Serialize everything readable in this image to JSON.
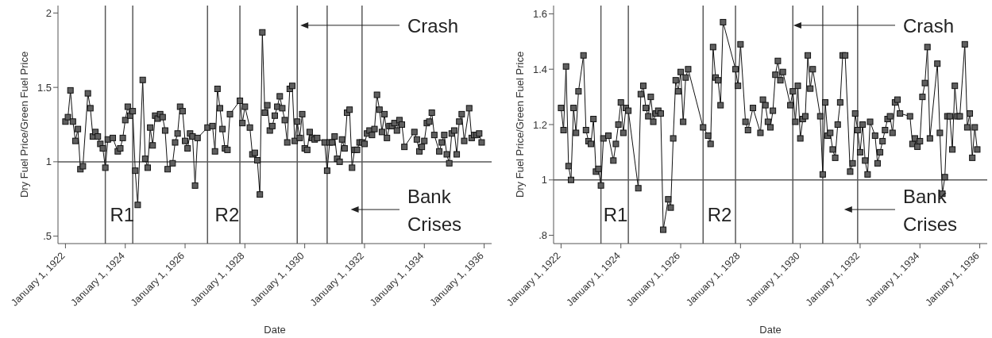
{
  "chart_data": [
    {
      "type": "line",
      "xlabel": "Date",
      "ylabel": "Dry Fuel Price/Green Fuel Price",
      "marker": "square",
      "xlim": [
        "1921-10",
        "1936-04"
      ],
      "ylim": [
        0.45,
        2.05
      ],
      "xticks": [
        {
          "value": "1922-01",
          "label": "January 1, 1922"
        },
        {
          "value": "1924-01",
          "label": "January 1, 1924"
        },
        {
          "value": "1926-01",
          "label": "January 1, 1926"
        },
        {
          "value": "1928-01",
          "label": "January 1, 1928"
        },
        {
          "value": "1930-01",
          "label": "January 1, 1930"
        },
        {
          "value": "1932-01",
          "label": "January 1, 1932"
        },
        {
          "value": "1934-01",
          "label": "January 1, 1934"
        },
        {
          "value": "1936-01",
          "label": "January 1, 1936"
        }
      ],
      "yticks": [
        {
          "value": 0.5,
          "label": ".5"
        },
        1,
        1.5,
        2
      ],
      "ref_lines": [
        {
          "axis": "y",
          "value": 1,
          "color": "#595959"
        },
        {
          "axis": "x",
          "value": "1923-05",
          "color": "#595959"
        },
        {
          "axis": "x",
          "value": "1924-04",
          "color": "#595959"
        },
        {
          "axis": "x",
          "value": "1926-10",
          "color": "#595959"
        },
        {
          "axis": "x",
          "value": "1927-11",
          "color": "#595959"
        },
        {
          "axis": "x",
          "value": "1929-10",
          "color": "#595959"
        },
        {
          "axis": "x",
          "value": "1930-10",
          "color": "#595959"
        },
        {
          "axis": "x",
          "value": "1931-12",
          "color": "#595959"
        }
      ],
      "annotations": [
        "R1",
        "R2",
        "Crash",
        "Bank Crises"
      ],
      "series": [
        {
          "color": "#5f5f5f",
          "x": [
            "1922-01",
            "1922-02",
            "1922-03",
            "1922-04",
            "1922-05",
            "1922-06",
            "1922-07",
            "1922-08",
            "1922-10",
            "1922-11",
            "1922-12",
            "1923-01",
            "1923-02",
            "1923-03",
            "1923-04",
            "1923-05",
            "1923-06",
            "1923-08",
            "1923-10",
            "1923-11",
            "1923-12",
            "1924-01",
            "1924-02",
            "1924-03",
            "1924-04",
            "1924-05",
            "1924-06",
            "1924-08",
            "1924-09",
            "1924-10",
            "1924-11",
            "1924-12",
            "1925-01",
            "1925-02",
            "1925-03",
            "1925-04",
            "1925-05",
            "1925-06",
            "1925-08",
            "1925-09",
            "1925-10",
            "1925-11",
            "1925-12",
            "1926-01",
            "1926-02",
            "1926-03",
            "1926-04",
            "1926-05",
            "1926-06",
            "1926-10",
            "1926-12",
            "1927-01",
            "1927-02",
            "1927-03",
            "1927-04",
            "1927-05",
            "1927-06",
            "1927-07",
            "1927-11",
            "1927-12",
            "1928-01",
            "1928-03",
            "1928-04",
            "1928-05",
            "1928-06",
            "1928-07",
            "1928-08",
            "1928-09",
            "1928-10",
            "1928-11",
            "1928-12",
            "1929-01",
            "1929-02",
            "1929-03",
            "1929-04",
            "1929-05",
            "1929-06",
            "1929-07",
            "1929-08",
            "1929-09",
            "1929-10",
            "1929-11",
            "1929-12",
            "1930-01",
            "1930-02",
            "1930-03",
            "1930-04",
            "1930-05",
            "1930-06",
            "1930-09",
            "1930-10",
            "1930-11",
            "1930-12",
            "1931-01",
            "1931-02",
            "1931-03",
            "1931-04",
            "1931-05",
            "1931-06",
            "1931-07",
            "1931-08",
            "1931-09",
            "1931-10",
            "1931-11",
            "1931-12",
            "1932-01",
            "1932-02",
            "1932-03",
            "1932-04",
            "1932-05",
            "1932-06",
            "1932-07",
            "1932-08",
            "1932-09",
            "1932-10",
            "1932-11",
            "1932-12",
            "1933-01",
            "1933-02",
            "1933-03",
            "1933-04",
            "1933-05",
            "1933-09",
            "1933-10",
            "1933-11",
            "1933-12",
            "1934-01",
            "1934-02",
            "1934-03",
            "1934-04",
            "1934-05",
            "1934-07",
            "1934-08",
            "1934-09",
            "1934-10",
            "1934-11",
            "1934-12",
            "1935-01",
            "1935-02",
            "1935-03",
            "1935-04",
            "1935-05",
            "1935-07",
            "1935-08",
            "1935-09",
            "1935-10",
            "1935-11",
            "1935-12"
          ],
          "values": [
            1.27,
            1.3,
            1.48,
            1.27,
            1.14,
            1.22,
            0.95,
            0.97,
            1.46,
            1.36,
            1.17,
            1.2,
            1.17,
            1.12,
            1.09,
            0.96,
            1.15,
            1.16,
            1.07,
            1.09,
            1.16,
            1.28,
            1.37,
            1.31,
            1.34,
            0.94,
            0.71,
            1.55,
            1.02,
            0.96,
            1.23,
            1.11,
            1.31,
            1.29,
            1.32,
            1.3,
            1.21,
            0.95,
            0.99,
            1.13,
            1.19,
            1.37,
            1.34,
            1.14,
            1.09,
            1.19,
            1.17,
            0.84,
            1.16,
            1.23,
            1.24,
            1.07,
            1.49,
            1.36,
            1.22,
            1.09,
            1.08,
            1.32,
            1.41,
            1.26,
            1.37,
            1.23,
            1.05,
            1.06,
            1.01,
            0.78,
            1.87,
            1.33,
            1.38,
            1.21,
            1.24,
            1.31,
            1.37,
            1.44,
            1.36,
            1.28,
            1.13,
            1.49,
            1.51,
            1.14,
            1.27,
            1.16,
            1.32,
            1.09,
            1.08,
            1.2,
            1.16,
            1.15,
            1.16,
            1.13,
            0.94,
            1.13,
            1.13,
            1.17,
            1.02,
            1.0,
            1.15,
            1.09,
            1.33,
            1.35,
            0.96,
            1.08,
            1.08,
            1.13,
            1.13,
            1.12,
            1.19,
            1.21,
            1.18,
            1.22,
            1.45,
            1.35,
            1.2,
            1.32,
            1.16,
            1.24,
            1.24,
            1.26,
            1.21,
            1.28,
            1.25,
            1.1,
            1.2,
            1.15,
            1.07,
            1.1,
            1.14,
            1.26,
            1.27,
            1.33,
            1.18,
            1.07,
            1.13,
            1.18,
            1.05,
            0.99,
            1.19,
            1.21,
            1.05,
            1.27,
            1.32,
            1.14,
            1.36,
            1.16,
            1.18,
            1.18,
            1.19,
            1.13
          ]
        }
      ]
    },
    {
      "type": "line",
      "xlabel": "Date",
      "ylabel": "Dry Fuel Price/Green Fuel Price",
      "marker": "square",
      "xlim": [
        "1921-10",
        "1936-04"
      ],
      "ylim": [
        0.77,
        1.63
      ],
      "xticks": [
        {
          "value": "1922-01",
          "label": "January 1, 1922"
        },
        {
          "value": "1924-01",
          "label": "January 1, 1924"
        },
        {
          "value": "1926-01",
          "label": "January 1, 1926"
        },
        {
          "value": "1928-01",
          "label": "January 1, 1928"
        },
        {
          "value": "1930-01",
          "label": "January 1, 1930"
        },
        {
          "value": "1932-01",
          "label": "January 1, 1932"
        },
        {
          "value": "1934-01",
          "label": "January 1, 1934"
        },
        {
          "value": "1936-01",
          "label": "January 1, 1936"
        }
      ],
      "yticks": [
        {
          "value": 0.8,
          "label": ".8"
        },
        1,
        1.2,
        1.4,
        1.6
      ],
      "ref_lines": [
        {
          "axis": "y",
          "value": 1,
          "color": "#595959"
        },
        {
          "axis": "x",
          "value": "1923-05",
          "color": "#595959"
        },
        {
          "axis": "x",
          "value": "1924-04",
          "color": "#595959"
        },
        {
          "axis": "x",
          "value": "1926-10",
          "color": "#595959"
        },
        {
          "axis": "x",
          "value": "1927-11",
          "color": "#595959"
        },
        {
          "axis": "x",
          "value": "1929-10",
          "color": "#595959"
        },
        {
          "axis": "x",
          "value": "1930-10",
          "color": "#595959"
        },
        {
          "axis": "x",
          "value": "1931-12",
          "color": "#595959"
        }
      ],
      "annotations": [
        "R1",
        "R2",
        "Crash",
        "Bank Crises"
      ],
      "series": [
        {
          "color": "#5f5f5f",
          "x": [
            "1922-01",
            "1922-02",
            "1922-03",
            "1922-04",
            "1922-05",
            "1922-06",
            "1922-07",
            "1922-08",
            "1922-10",
            "1922-11",
            "1922-12",
            "1923-01",
            "1923-02",
            "1923-03",
            "1923-04",
            "1923-05",
            "1923-06",
            "1923-08",
            "1923-10",
            "1923-11",
            "1923-12",
            "1924-01",
            "1924-02",
            "1924-03",
            "1924-04",
            "1924-08",
            "1924-09",
            "1924-10",
            "1924-11",
            "1924-12",
            "1925-01",
            "1925-02",
            "1925-03",
            "1925-04",
            "1925-05",
            "1925-06",
            "1925-08",
            "1925-09",
            "1925-10",
            "1925-11",
            "1925-12",
            "1926-01",
            "1926-02",
            "1926-03",
            "1926-04",
            "1926-10",
            "1926-12",
            "1927-01",
            "1927-02",
            "1927-03",
            "1927-04",
            "1927-05",
            "1927-06",
            "1927-11",
            "1927-12",
            "1928-01",
            "1928-03",
            "1928-04",
            "1928-06",
            "1928-09",
            "1928-10",
            "1928-11",
            "1928-12",
            "1929-01",
            "1929-02",
            "1929-03",
            "1929-04",
            "1929-05",
            "1929-06",
            "1929-09",
            "1929-10",
            "1929-11",
            "1929-12",
            "1930-01",
            "1930-02",
            "1930-03",
            "1930-04",
            "1930-05",
            "1930-06",
            "1930-09",
            "1930-10",
            "1930-11",
            "1930-12",
            "1931-01",
            "1931-02",
            "1931-03",
            "1931-04",
            "1931-05",
            "1931-06",
            "1931-07",
            "1931-09",
            "1931-10",
            "1931-11",
            "1931-12",
            "1932-01",
            "1932-02",
            "1932-03",
            "1932-04",
            "1932-05",
            "1932-07",
            "1932-08",
            "1932-09",
            "1932-10",
            "1932-11",
            "1932-12",
            "1933-01",
            "1933-02",
            "1933-03",
            "1933-04",
            "1933-05",
            "1933-09",
            "1933-10",
            "1933-11",
            "1933-12",
            "1934-01",
            "1934-02",
            "1934-03",
            "1934-04",
            "1934-05",
            "1934-08",
            "1934-09",
            "1934-10",
            "1934-11",
            "1934-12",
            "1935-01",
            "1935-02",
            "1935-03",
            "1935-04",
            "1935-05",
            "1935-07",
            "1935-08",
            "1935-09",
            "1935-10",
            "1935-11",
            "1935-12"
          ],
          "values": [
            1.26,
            1.18,
            1.41,
            1.05,
            1.0,
            1.26,
            1.17,
            1.32,
            1.45,
            1.18,
            1.14,
            1.13,
            1.22,
            1.03,
            1.04,
            0.98,
            1.15,
            1.16,
            1.07,
            1.13,
            1.2,
            1.28,
            1.17,
            1.26,
            1.25,
            0.97,
            1.31,
            1.34,
            1.26,
            1.23,
            1.3,
            1.21,
            1.24,
            1.25,
            1.24,
            0.82,
            0.93,
            0.9,
            1.15,
            1.36,
            1.32,
            1.39,
            1.21,
            1.37,
            1.4,
            1.19,
            1.16,
            1.13,
            1.48,
            1.37,
            1.36,
            1.27,
            1.57,
            1.4,
            1.34,
            1.49,
            1.21,
            1.18,
            1.26,
            1.17,
            1.29,
            1.27,
            1.21,
            1.19,
            1.25,
            1.38,
            1.43,
            1.36,
            1.39,
            1.27,
            1.32,
            1.21,
            1.34,
            1.15,
            1.22,
            1.23,
            1.45,
            1.33,
            1.4,
            1.23,
            1.02,
            1.28,
            1.16,
            1.17,
            1.11,
            1.08,
            1.2,
            1.28,
            1.45,
            1.45,
            1.03,
            1.06,
            1.24,
            1.18,
            1.1,
            1.2,
            1.07,
            1.02,
            1.21,
            1.16,
            1.06,
            1.1,
            1.14,
            1.18,
            1.22,
            1.23,
            1.17,
            1.28,
            1.29,
            1.24,
            1.23,
            1.13,
            1.15,
            1.12,
            1.14,
            1.3,
            1.35,
            1.48,
            1.15,
            1.42,
            1.17,
            0.95,
            1.01,
            1.23,
            1.23,
            1.11,
            1.34,
            1.23,
            1.23,
            1.49,
            1.19,
            1.24,
            1.08,
            1.19,
            1.11
          ]
        }
      ]
    }
  ]
}
